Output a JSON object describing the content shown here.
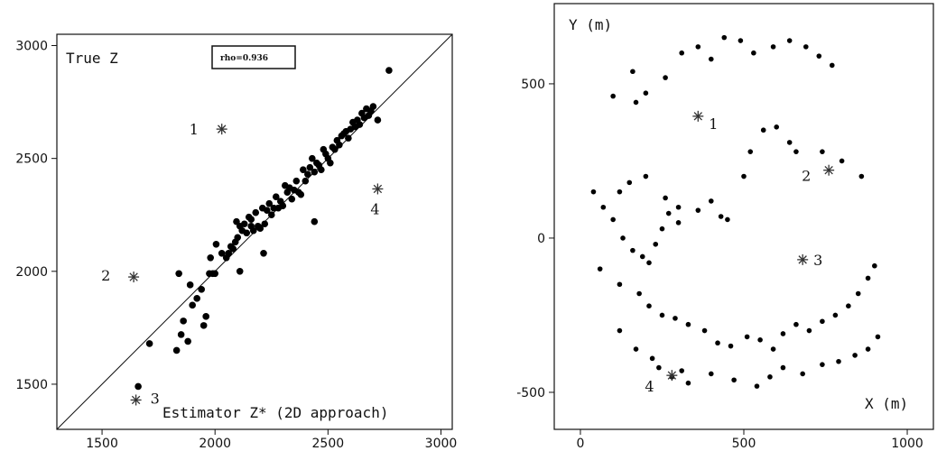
{
  "chart_data": [
    {
      "type": "scatter",
      "title": "",
      "xlabel": "Estimator Z* (2D approach)",
      "ylabel": "True Z",
      "xlim": [
        1300,
        3050
      ],
      "ylim": [
        1300,
        3050
      ],
      "xticks": [
        1500,
        2000,
        2500,
        3000
      ],
      "yticks": [
        1500,
        2000,
        2500,
        3000
      ],
      "annotation": "rho=0.936",
      "identity_line": true,
      "series": [
        {
          "marker": "dot",
          "x": [
            1840,
            1710,
            1850,
            1860,
            1880,
            1900,
            1920,
            1940,
            1960,
            1975,
            1980,
            1990,
            2000,
            2005,
            2030,
            2050,
            2060,
            2070,
            2080,
            2090,
            2095,
            2100,
            2110,
            2120,
            2130,
            2140,
            2150,
            2160,
            2170,
            2180,
            2190,
            2200,
            2210,
            2220,
            2230,
            2240,
            2250,
            2260,
            2270,
            2280,
            2290,
            2300,
            2310,
            2320,
            2330,
            2340,
            2350,
            2360,
            2370,
            2380,
            2390,
            2400,
            2410,
            2420,
            2430,
            2440,
            2450,
            2460,
            2470,
            2480,
            2490,
            2500,
            2510,
            2520,
            2530,
            2540,
            2550,
            2560,
            2570,
            2580,
            2590,
            2600,
            2610,
            2620,
            2630,
            2640,
            2650,
            2660,
            2670,
            2680,
            2690,
            2700,
            2720,
            2770,
            2440,
            1660,
            1830,
            1890,
            1950,
            2160,
            2215,
            2110
          ],
          "y": [
            1990,
            1680,
            1720,
            1780,
            1690,
            1850,
            1880,
            1920,
            1800,
            1990,
            2060,
            1990,
            1990,
            2120,
            2080,
            2060,
            2080,
            2110,
            2100,
            2130,
            2220,
            2150,
            2200,
            2180,
            2210,
            2170,
            2240,
            2200,
            2180,
            2260,
            2200,
            2190,
            2280,
            2210,
            2270,
            2300,
            2250,
            2280,
            2330,
            2280,
            2310,
            2290,
            2380,
            2350,
            2370,
            2320,
            2360,
            2400,
            2350,
            2340,
            2450,
            2400,
            2430,
            2460,
            2500,
            2440,
            2480,
            2470,
            2450,
            2540,
            2520,
            2500,
            2480,
            2550,
            2540,
            2580,
            2560,
            2600,
            2610,
            2620,
            2590,
            2630,
            2660,
            2640,
            2670,
            2650,
            2700,
            2680,
            2720,
            2690,
            2710,
            2730,
            2670,
            2890,
            2220,
            1490,
            1650,
            1940,
            1760,
            2230,
            2080,
            2000
          ]
        },
        {
          "marker": "star",
          "x": [
            2030,
            1640,
            1650,
            2720
          ],
          "y": [
            2630,
            1975,
            1430,
            2365
          ],
          "labels": [
            "1",
            "2",
            "3",
            "4"
          ]
        }
      ]
    },
    {
      "type": "scatter",
      "title": "",
      "xlabel": "X (m)",
      "ylabel": "Y (m)",
      "xlim": [
        -80,
        1080
      ],
      "ylim": [
        -620,
        760
      ],
      "xticks": [
        0,
        500,
        1000
      ],
      "yticks": [
        -500,
        0,
        500
      ],
      "series": [
        {
          "marker": "dot",
          "x": [
            100,
            160,
            170,
            200,
            260,
            310,
            360,
            400,
            440,
            490,
            530,
            590,
            640,
            690,
            730,
            770,
            120,
            150,
            200,
            260,
            300,
            360,
            400,
            430,
            450,
            500,
            520,
            560,
            600,
            640,
            660,
            740,
            800,
            860,
            60,
            120,
            180,
            210,
            250,
            290,
            330,
            380,
            420,
            460,
            510,
            550,
            590,
            620,
            660,
            700,
            740,
            780,
            820,
            850,
            880,
            900,
            120,
            170,
            220,
            240,
            280,
            310,
            330,
            400,
            470,
            540,
            580,
            620,
            680,
            740,
            790,
            840,
            880,
            910,
            40,
            70,
            100,
            130,
            160,
            190,
            210,
            230,
            250,
            270,
            300
          ],
          "y": [
            460,
            540,
            440,
            470,
            520,
            600,
            620,
            580,
            650,
            640,
            600,
            620,
            640,
            620,
            590,
            560,
            150,
            180,
            200,
            130,
            100,
            90,
            120,
            70,
            60,
            200,
            280,
            350,
            360,
            310,
            280,
            280,
            250,
            200,
            -100,
            -150,
            -180,
            -220,
            -250,
            -260,
            -280,
            -300,
            -340,
            -350,
            -320,
            -330,
            -360,
            -310,
            -280,
            -300,
            -270,
            -250,
            -220,
            -180,
            -130,
            -90,
            -300,
            -360,
            -390,
            -420,
            -450,
            -430,
            -470,
            -440,
            -460,
            -480,
            -450,
            -420,
            -440,
            -410,
            -400,
            -380,
            -360,
            -320,
            150,
            100,
            60,
            0,
            -40,
            -60,
            -80,
            -20,
            30,
            80,
            50
          ]
        },
        {
          "marker": "star",
          "x": [
            360,
            760,
            680,
            280
          ],
          "y": [
            395,
            220,
            -70,
            -445
          ],
          "labels": [
            "1",
            "2",
            "3",
            "4"
          ]
        }
      ]
    }
  ]
}
